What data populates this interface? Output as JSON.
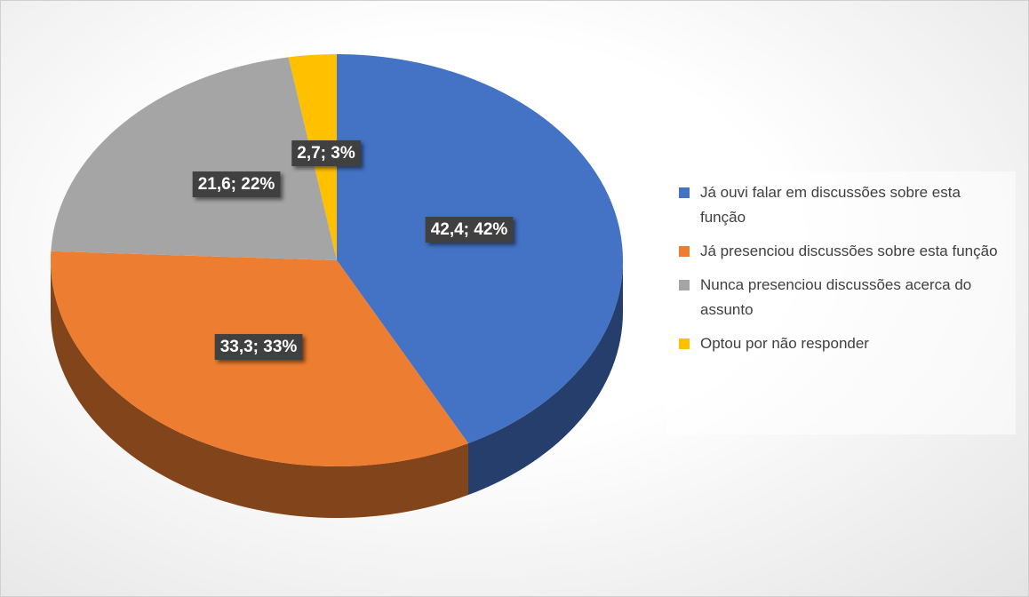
{
  "chart_data": {
    "type": "pie",
    "categories": [
      "Já ouvi falar em discussões sobre esta função",
      "Já presenciou discussões sobre esta função",
      "Nunca presenciou discussões acerca do assunto",
      "Optou por não responder"
    ],
    "values": [
      42.4,
      33.3,
      21.6,
      2.7
    ],
    "value_labels": [
      "42,4; 42%",
      "33,3; 33%",
      "21,6; 22%",
      "2,7; 3%"
    ],
    "colors": [
      "#4472c4",
      "#ed7d31",
      "#a5a5a5",
      "#ffc000"
    ],
    "legend": "right"
  }
}
